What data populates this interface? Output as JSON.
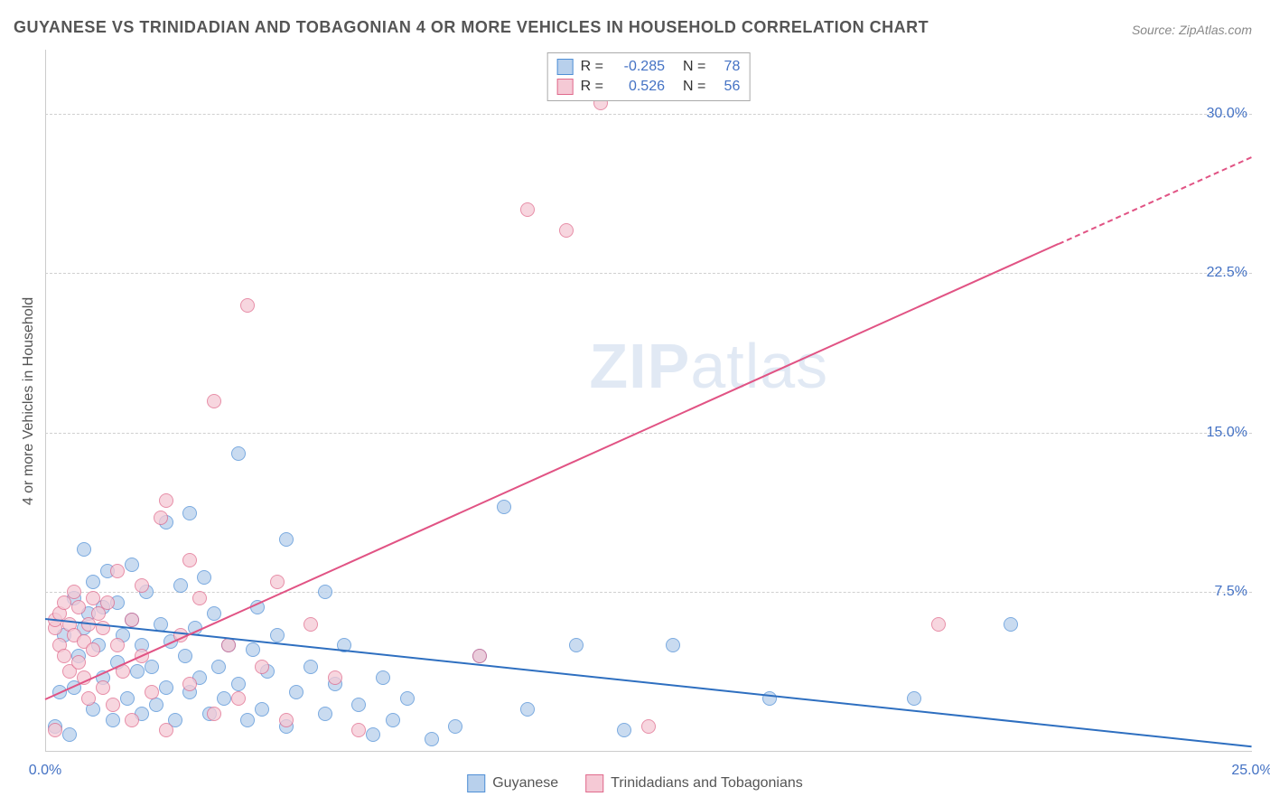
{
  "title": "GUYANESE VS TRINIDADIAN AND TOBAGONIAN 4 OR MORE VEHICLES IN HOUSEHOLD CORRELATION CHART",
  "source": "Source: ZipAtlas.com",
  "watermark_bold": "ZIP",
  "watermark_light": "atlas",
  "y_axis_title": "4 or more Vehicles in Household",
  "chart": {
    "type": "scatter",
    "xlim": [
      0,
      25
    ],
    "ylim": [
      0,
      33
    ],
    "xticks": [
      {
        "v": 0,
        "l": "0.0%"
      },
      {
        "v": 25,
        "l": "25.0%"
      }
    ],
    "yticks": [
      {
        "v": 7.5,
        "l": "7.5%"
      },
      {
        "v": 15,
        "l": "15.0%"
      },
      {
        "v": 22.5,
        "l": "22.5%"
      },
      {
        "v": 30,
        "l": "30.0%"
      }
    ],
    "grid_color": "#d0d0d0",
    "background_color": "#ffffff",
    "marker_radius": 8,
    "series": [
      {
        "name": "Guyanese",
        "fill": "#b8d0ec",
        "stroke": "#4f8fd6",
        "R": "-0.285",
        "N": "78",
        "regression": {
          "x0": 0,
          "y0": 6.3,
          "x1": 25,
          "y1": 0.3,
          "color": "#2e6fc0",
          "solid_until": 25
        },
        "points": [
          [
            0.2,
            1.2
          ],
          [
            0.3,
            2.8
          ],
          [
            0.4,
            5.5
          ],
          [
            0.5,
            0.8
          ],
          [
            0.6,
            3.0
          ],
          [
            0.6,
            7.2
          ],
          [
            0.7,
            4.5
          ],
          [
            0.8,
            5.8
          ],
          [
            0.8,
            9.5
          ],
          [
            0.9,
            6.5
          ],
          [
            1.0,
            2.0
          ],
          [
            1.0,
            8.0
          ],
          [
            1.1,
            5.0
          ],
          [
            1.2,
            3.5
          ],
          [
            1.2,
            6.8
          ],
          [
            1.3,
            8.5
          ],
          [
            1.4,
            1.5
          ],
          [
            1.5,
            7.0
          ],
          [
            1.5,
            4.2
          ],
          [
            1.6,
            5.5
          ],
          [
            1.7,
            2.5
          ],
          [
            1.8,
            6.2
          ],
          [
            1.8,
            8.8
          ],
          [
            1.9,
            3.8
          ],
          [
            2.0,
            5.0
          ],
          [
            2.0,
            1.8
          ],
          [
            2.1,
            7.5
          ],
          [
            2.2,
            4.0
          ],
          [
            2.3,
            2.2
          ],
          [
            2.4,
            6.0
          ],
          [
            2.5,
            10.8
          ],
          [
            2.5,
            3.0
          ],
          [
            2.6,
            5.2
          ],
          [
            2.7,
            1.5
          ],
          [
            2.8,
            7.8
          ],
          [
            2.9,
            4.5
          ],
          [
            3.0,
            2.8
          ],
          [
            3.0,
            11.2
          ],
          [
            3.1,
            5.8
          ],
          [
            3.2,
            3.5
          ],
          [
            3.3,
            8.2
          ],
          [
            3.4,
            1.8
          ],
          [
            3.5,
            6.5
          ],
          [
            3.6,
            4.0
          ],
          [
            3.7,
            2.5
          ],
          [
            3.8,
            5.0
          ],
          [
            4.0,
            14.0
          ],
          [
            4.0,
            3.2
          ],
          [
            4.2,
            1.5
          ],
          [
            4.3,
            4.8
          ],
          [
            4.5,
            2.0
          ],
          [
            4.6,
            3.8
          ],
          [
            4.8,
            5.5
          ],
          [
            5.0,
            10.0
          ],
          [
            5.0,
            1.2
          ],
          [
            5.2,
            2.8
          ],
          [
            5.5,
            4.0
          ],
          [
            5.8,
            1.8
          ],
          [
            6.0,
            3.2
          ],
          [
            6.2,
            5.0
          ],
          [
            6.5,
            2.2
          ],
          [
            6.8,
            0.8
          ],
          [
            7.0,
            3.5
          ],
          [
            7.2,
            1.5
          ],
          [
            7.5,
            2.5
          ],
          [
            8.0,
            0.6
          ],
          [
            8.5,
            1.2
          ],
          [
            9.0,
            4.5
          ],
          [
            9.5,
            11.5
          ],
          [
            10.0,
            2.0
          ],
          [
            11.0,
            5.0
          ],
          [
            12.0,
            1.0
          ],
          [
            13.0,
            5.0
          ],
          [
            15.0,
            2.5
          ],
          [
            18.0,
            2.5
          ],
          [
            20.0,
            6.0
          ],
          [
            5.8,
            7.5
          ],
          [
            4.4,
            6.8
          ]
        ]
      },
      {
        "name": "Trinidadians and Tobagonians",
        "fill": "#f5c9d5",
        "stroke": "#e06a8c",
        "R": "0.526",
        "N": "56",
        "regression": {
          "x0": 0,
          "y0": 2.5,
          "x1": 25,
          "y1": 28.0,
          "color": "#e15384",
          "solid_until": 21
        },
        "points": [
          [
            0.2,
            5.8
          ],
          [
            0.2,
            6.2
          ],
          [
            0.3,
            5.0
          ],
          [
            0.3,
            6.5
          ],
          [
            0.4,
            4.5
          ],
          [
            0.4,
            7.0
          ],
          [
            0.5,
            3.8
          ],
          [
            0.5,
            6.0
          ],
          [
            0.6,
            5.5
          ],
          [
            0.6,
            7.5
          ],
          [
            0.7,
            4.2
          ],
          [
            0.7,
            6.8
          ],
          [
            0.8,
            3.5
          ],
          [
            0.8,
            5.2
          ],
          [
            0.9,
            6.0
          ],
          [
            0.9,
            2.5
          ],
          [
            1.0,
            7.2
          ],
          [
            1.0,
            4.8
          ],
          [
            1.1,
            6.5
          ],
          [
            1.2,
            3.0
          ],
          [
            1.2,
            5.8
          ],
          [
            1.3,
            7.0
          ],
          [
            1.4,
            2.2
          ],
          [
            1.5,
            5.0
          ],
          [
            1.5,
            8.5
          ],
          [
            1.6,
            3.8
          ],
          [
            1.8,
            6.2
          ],
          [
            1.8,
            1.5
          ],
          [
            2.0,
            4.5
          ],
          [
            2.0,
            7.8
          ],
          [
            2.2,
            2.8
          ],
          [
            2.4,
            11.0
          ],
          [
            2.5,
            1.0
          ],
          [
            2.5,
            11.8
          ],
          [
            2.8,
            5.5
          ],
          [
            3.0,
            3.2
          ],
          [
            3.0,
            9.0
          ],
          [
            3.2,
            7.2
          ],
          [
            3.5,
            1.8
          ],
          [
            3.5,
            16.5
          ],
          [
            3.8,
            5.0
          ],
          [
            4.0,
            2.5
          ],
          [
            4.2,
            21.0
          ],
          [
            4.5,
            4.0
          ],
          [
            4.8,
            8.0
          ],
          [
            5.0,
            1.5
          ],
          [
            5.5,
            6.0
          ],
          [
            6.0,
            3.5
          ],
          [
            6.5,
            1.0
          ],
          [
            9.0,
            4.5
          ],
          [
            10.0,
            25.5
          ],
          [
            10.8,
            24.5
          ],
          [
            11.5,
            30.5
          ],
          [
            12.5,
            1.2
          ],
          [
            18.5,
            6.0
          ],
          [
            0.2,
            1.0
          ]
        ]
      }
    ]
  },
  "stats_box": {
    "rows": [
      {
        "swatch_fill": "#b8d0ec",
        "swatch_stroke": "#4f8fd6",
        "r_label": "R =",
        "r_val": "-0.285",
        "n_label": "N =",
        "n_val": "78"
      },
      {
        "swatch_fill": "#f5c9d5",
        "swatch_stroke": "#e06a8c",
        "r_label": "R =",
        "r_val": "0.526",
        "n_label": "N =",
        "n_val": "56"
      }
    ]
  },
  "legend": {
    "items": [
      {
        "swatch_fill": "#b8d0ec",
        "swatch_stroke": "#4f8fd6",
        "label": "Guyanese"
      },
      {
        "swatch_fill": "#f5c9d5",
        "swatch_stroke": "#e06a8c",
        "label": "Trinidadians and Tobagonians"
      }
    ]
  }
}
